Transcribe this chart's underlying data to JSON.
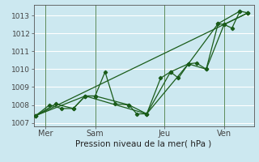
{
  "background_color": "#cce8f0",
  "grid_color": "#ffffff",
  "line_color": "#1a5c1a",
  "marker_color": "#1a5c1a",
  "xlabel": "Pression niveau de la mer( hPa )",
  "ylim": [
    1006.8,
    1013.6
  ],
  "yticks": [
    1007,
    1008,
    1009,
    1010,
    1011,
    1012,
    1013
  ],
  "day_labels": [
    "Mer",
    "Sam",
    "Jeu",
    "Ven"
  ],
  "day_positions": [
    0.5,
    3.0,
    6.5,
    9.5
  ],
  "vline_positions": [
    0.5,
    3.0,
    6.5,
    9.5
  ],
  "xlim": [
    -0.1,
    11.0
  ],
  "series": [
    [
      0.0,
      1007.4,
      0.7,
      1008.0,
      1.3,
      1007.8,
      1.9,
      1007.8,
      2.5,
      1008.5,
      3.0,
      1008.5,
      3.5,
      1009.85,
      4.0,
      1008.05,
      4.7,
      1008.0,
      5.1,
      1007.5,
      5.6,
      1007.5,
      6.3,
      1009.5,
      6.8,
      1009.85,
      7.2,
      1009.5,
      7.7,
      1010.3,
      8.1,
      1010.35,
      8.6,
      1010.0,
      9.2,
      1012.55,
      9.5,
      1012.5,
      9.9,
      1012.3,
      10.3,
      1013.25,
      10.7,
      1013.15
    ],
    [
      0.0,
      1007.4,
      1.0,
      1008.05,
      1.9,
      1007.8,
      2.5,
      1008.5,
      3.0,
      1008.5,
      4.7,
      1008.0,
      5.6,
      1007.5,
      6.8,
      1009.85,
      7.7,
      1010.3,
      8.6,
      1010.0,
      9.5,
      1012.5,
      10.7,
      1013.15
    ],
    [
      0.0,
      1007.4,
      2.5,
      1008.5,
      5.6,
      1007.5,
      7.7,
      1010.3,
      9.2,
      1012.55,
      10.3,
      1013.25
    ],
    [
      0.0,
      1007.4,
      10.7,
      1013.15
    ]
  ]
}
